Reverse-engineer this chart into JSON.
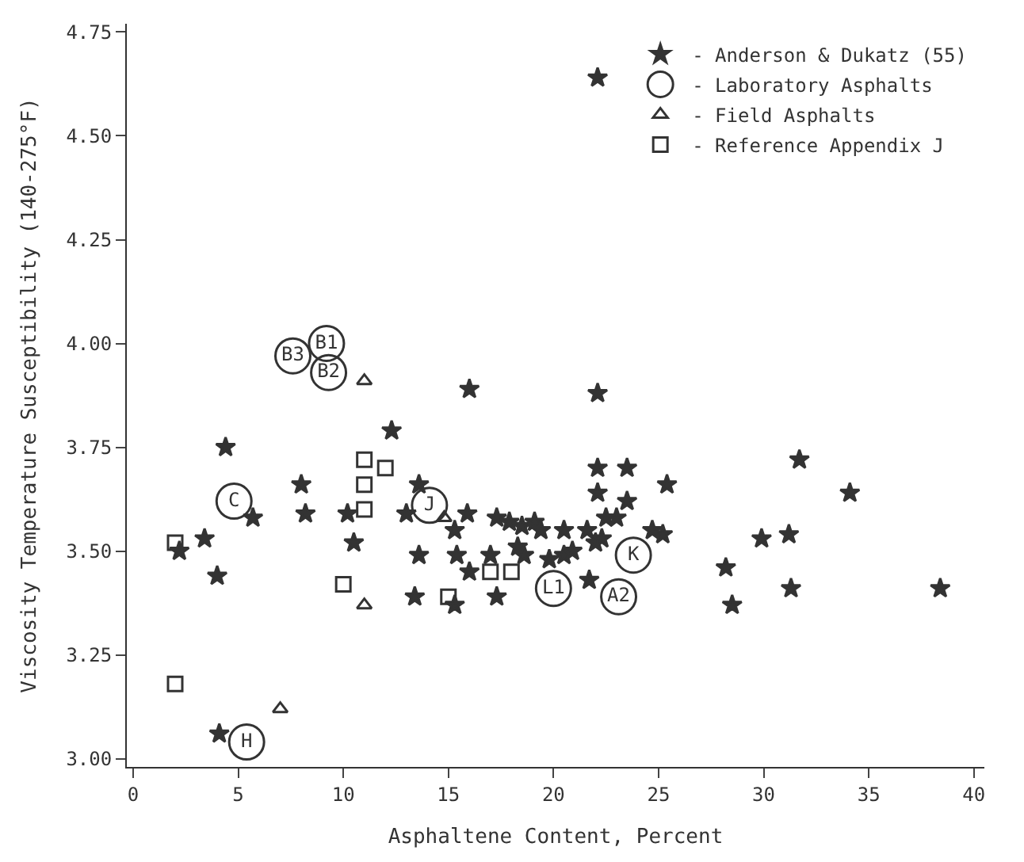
{
  "chart_data": {
    "type": "scatter",
    "xlabel": "Asphaltene Content, Percent",
    "ylabel": "Viscosity Temperature Susceptibility (140-275°F)",
    "xlim": [
      -0.3,
      40.5
    ],
    "ylim": [
      2.98,
      4.77
    ],
    "xticks": [
      0,
      5,
      10,
      15,
      20,
      25,
      30,
      35,
      40
    ],
    "yticks": [
      {
        "value": 3.0,
        "label": "3.00"
      },
      {
        "value": 3.25,
        "label": "3.25"
      },
      {
        "value": 3.5,
        "label": "3.50"
      },
      {
        "value": 3.75,
        "label": "3.75"
      },
      {
        "value": 4.0,
        "label": "4.00"
      },
      {
        "value": 4.25,
        "label": "4.25"
      },
      {
        "value": 4.5,
        "label": "4.50"
      },
      {
        "value": 4.75,
        "label": "4.75"
      }
    ],
    "grid": false,
    "legend": "top right",
    "series": [
      {
        "name": "- Anderson & Dukatz (55)",
        "color": "#333333",
        "marker": "star",
        "x": [
          22.1,
          4.4,
          3.4,
          2.2,
          4.0,
          5.7,
          8.0,
          8.2,
          10.2,
          10.5,
          12.3,
          13.0,
          13.6,
          13.4,
          4.1,
          13.6,
          16.0,
          22.1,
          22.1,
          23.5,
          25.4,
          22.1,
          23.5,
          15.9,
          17.3,
          17.9,
          18.5,
          19.1,
          19.4,
          20.5,
          15.3,
          21.6,
          22.5,
          23.0,
          22.0,
          22.3,
          24.7,
          25.2,
          15.4,
          17.0,
          18.3,
          18.6,
          19.8,
          20.5,
          20.9,
          16.0,
          17.3,
          21.7,
          15.3,
          28.2,
          28.5,
          31.7,
          34.1,
          29.9,
          31.2,
          31.3,
          38.4
        ],
        "values": [
          4.64,
          3.75,
          3.53,
          3.5,
          3.44,
          3.58,
          3.66,
          3.59,
          3.59,
          3.52,
          3.79,
          3.59,
          3.49,
          3.39,
          3.06,
          3.66,
          3.89,
          3.88,
          3.7,
          3.7,
          3.66,
          3.64,
          3.62,
          3.59,
          3.58,
          3.57,
          3.56,
          3.57,
          3.55,
          3.55,
          3.55,
          3.55,
          3.58,
          3.58,
          3.52,
          3.53,
          3.55,
          3.54,
          3.49,
          3.49,
          3.51,
          3.49,
          3.48,
          3.49,
          3.5,
          3.45,
          3.39,
          3.43,
          3.37,
          3.46,
          3.37,
          3.72,
          3.64,
          3.53,
          3.54,
          3.41,
          3.41
        ]
      },
      {
        "name": "- Laboratory Asphalts",
        "color": "#333333",
        "marker": "circle",
        "x": [
          9.2,
          7.6,
          9.3,
          4.8,
          14.1,
          23.8,
          20.0,
          23.1,
          5.4
        ],
        "values": [
          4.0,
          3.97,
          3.93,
          3.62,
          3.61,
          3.49,
          3.41,
          3.39,
          3.04
        ],
        "value_labels": [
          "B1",
          "B3",
          "B2",
          "C",
          "J",
          "K",
          "L1",
          "A2",
          "H"
        ]
      },
      {
        "name": "- Field Asphalts",
        "color": "#333333",
        "marker": "triangle",
        "x": [
          11.0,
          11.0,
          7.0,
          14.8
        ],
        "values": [
          3.91,
          3.37,
          3.12,
          3.58
        ]
      },
      {
        "name": "- Reference Appendix J",
        "color": "#333333",
        "marker": "square",
        "x": [
          2.0,
          2.0,
          11.0,
          11.0,
          12.0,
          11.0,
          10.0,
          17.0,
          18.0,
          15.0
        ],
        "values": [
          3.52,
          3.18,
          3.72,
          3.66,
          3.7,
          3.6,
          3.42,
          3.45,
          3.45,
          3.39
        ]
      }
    ]
  }
}
